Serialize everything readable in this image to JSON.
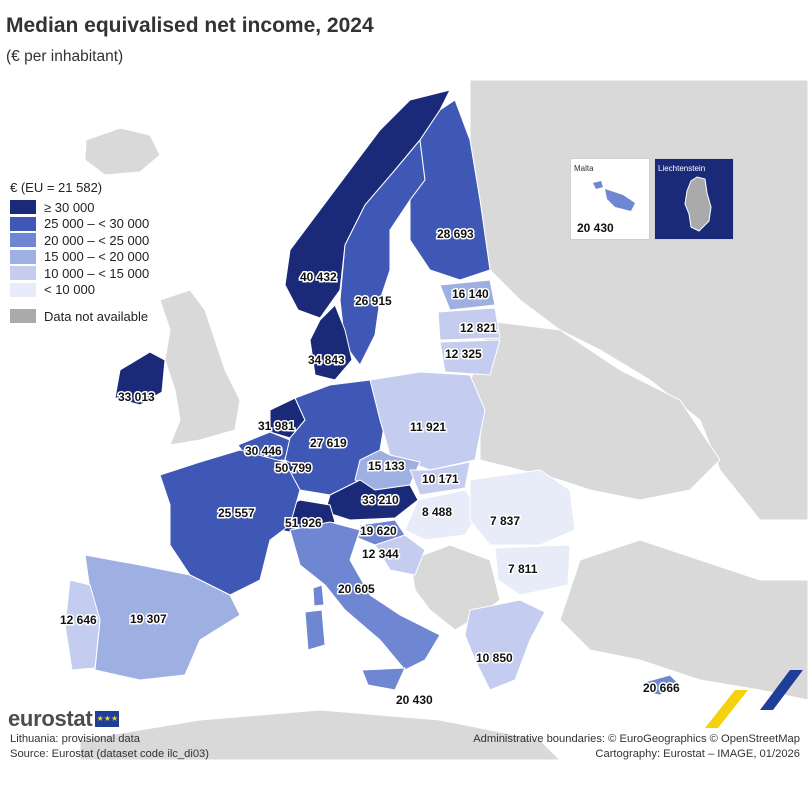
{
  "title": "Median equivalised net income, 2024",
  "subtitle": "(€ per inhabitant)",
  "colors": {
    "class1": "#1a2a78",
    "class2": "#3f58b5",
    "class3": "#6f87d2",
    "class4": "#9eafe2",
    "class5": "#c4cdef",
    "class6": "#e8ebf8",
    "na": "#d9d9d9",
    "sea": "#ffffff"
  },
  "legend": {
    "title": "€ (EU = 21 582)",
    "classes": [
      {
        "label": "≥ 30 000",
        "color": "#1a2a78"
      },
      {
        "label": "25 000 – < 30 000",
        "color": "#3f58b5"
      },
      {
        "label": "20 000 – < 25 000",
        "color": "#6f87d2"
      },
      {
        "label": "15 000 – < 20 000",
        "color": "#9eafe2"
      },
      {
        "label": "10 000 – < 15 000",
        "color": "#c4cdef"
      },
      {
        "label": "< 10 000",
        "color": "#e8ebf8"
      }
    ],
    "na_label": "Data not available",
    "na_color": "#aaaaaa"
  },
  "values": {
    "norway": "40 432",
    "sweden": "26 915",
    "finland": "28 693",
    "estonia": "16 140",
    "latvia": "12 821",
    "lithuania": "12 325",
    "denmark": "34 843",
    "ireland": "33 013",
    "netherlands": "31 981",
    "belgium": "30 446",
    "luxembourg": "50 799",
    "germany": "27 619",
    "poland": "11 921",
    "czechia": "15 133",
    "slovakia": "10 171",
    "austria": "33 210",
    "switzerland": "51 926",
    "slovenia": "19 620",
    "croatia": "12 344",
    "hungary": "8 488",
    "romania": "7 837",
    "bulgaria": "7 811",
    "france": "25 557",
    "italy": "20 605",
    "malta_main": "20 430",
    "spain": "19 307",
    "portugal": "12 646",
    "greece": "10 850",
    "cyprus": "20 666"
  },
  "insets": {
    "malta": {
      "name": "Malta",
      "value": "20 430"
    },
    "liechtenstein": {
      "name": "Liechtenstein"
    }
  },
  "logo": "eurostat",
  "footer": {
    "note1": "Lithuania: provisional data",
    "note2": "Source: Eurostat (dataset code ilc_di03)",
    "right1": "Administrative boundaries: © EuroGeographics © OpenStreetMap",
    "right2": "Cartography: Eurostat – IMAGE, 01/2026"
  }
}
